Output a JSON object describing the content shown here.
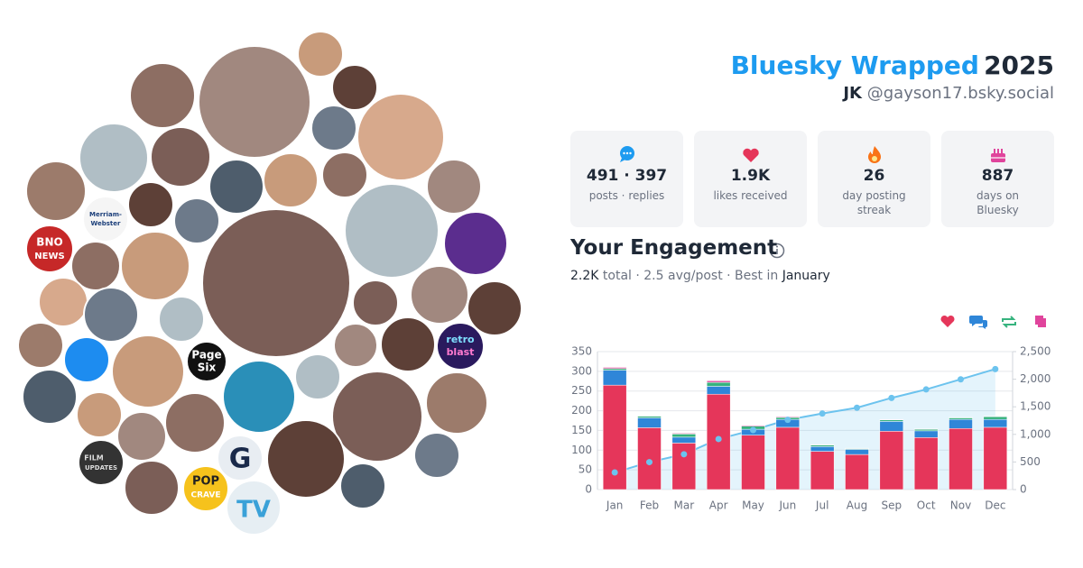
{
  "header": {
    "title": "Bluesky Wrapped",
    "year": "2025",
    "name": "JK",
    "handle": "@gayson17.bsky.social"
  },
  "stats": [
    {
      "value": "491 · 397",
      "label": "posts · replies"
    },
    {
      "value": "1.9K",
      "label": "likes received"
    },
    {
      "value": "26",
      "label": "day posting streak"
    },
    {
      "value": "887",
      "label": "days on Bluesky"
    }
  ],
  "engagement": {
    "title": "Your Engagement",
    "total": "2.2K",
    "total_label": "total · 2.5 avg/post · Best in",
    "best": "January"
  },
  "avatar_labels": [
    "Merriam-",
    "Webster",
    "BNO",
    "NEWS",
    "Page",
    "Six",
    "FILM",
    "UPDATES",
    "G",
    "POP",
    "CRAVE",
    "TV",
    "retro",
    "blast"
  ],
  "chart_data": {
    "type": "bar",
    "categories": [
      "Jan",
      "Feb",
      "Mar",
      "Apr",
      "May",
      "Jun",
      "Jul",
      "Aug",
      "Sep",
      "Oct",
      "Nov",
      "Dec"
    ],
    "series": [
      {
        "color": "#e5365a",
        "values": [
          265,
          157,
          118,
          242,
          138,
          158,
          97,
          89,
          148,
          132,
          155,
          158
        ]
      },
      {
        "color": "#2f86d8",
        "values": [
          38,
          25,
          15,
          20,
          15,
          20,
          12,
          13,
          25,
          17,
          23,
          20
        ]
      },
      {
        "color": "#36b37e",
        "values": [
          4,
          4,
          8,
          10,
          8,
          5,
          4,
          2,
          4,
          4,
          4,
          7
        ]
      },
      {
        "color": "#e0449c",
        "values": [
          3,
          1,
          2,
          4,
          2,
          2,
          1,
          1,
          1,
          1,
          1,
          1
        ]
      },
      {
        "type": "line",
        "axis": "y2",
        "color": "#6cc3ee",
        "values": [
          310,
          497,
          640,
          916,
          1079,
          1264,
          1378,
          1483,
          1661,
          1815,
          1998,
          2184
        ]
      }
    ],
    "ylim": [
      0,
      350
    ],
    "yticks": [
      0,
      50,
      100,
      150,
      200,
      250,
      300,
      350
    ],
    "y2lim": [
      0,
      2500
    ],
    "y2ticks": [
      0,
      500,
      {
        "value": 1000,
        "label": "1,000"
      },
      {
        "value": 1500,
        "label": "1,500"
      },
      {
        "value": 2000,
        "label": "2,000"
      },
      {
        "value": 2500,
        "label": "2,500"
      }
    ],
    "grid": true
  }
}
